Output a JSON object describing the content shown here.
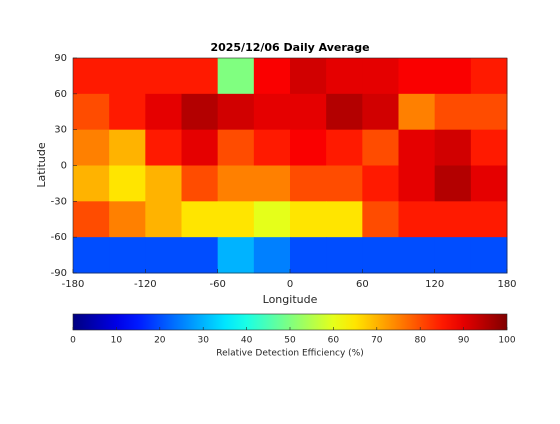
{
  "chart_data": {
    "type": "heatmap",
    "title": "2025/12/06 Daily Average",
    "xlabel": "Longitude",
    "ylabel": "Latitude",
    "xlim": [
      -180,
      180
    ],
    "ylim": [
      -90,
      90
    ],
    "xticks": [
      -180,
      -120,
      -60,
      0,
      60,
      120,
      180
    ],
    "yticks": [
      90,
      60,
      30,
      0,
      -30,
      -60,
      -90
    ],
    "x": [
      -165,
      -135,
      -105,
      -75,
      -45,
      -15,
      15,
      45,
      75,
      105,
      135,
      165
    ],
    "y": [
      75,
      45,
      15,
      -15,
      -45,
      -75
    ],
    "values": [
      [
        85,
        85,
        85,
        85,
        50,
        88,
        92,
        90,
        90,
        88,
        88,
        85
      ],
      [
        80,
        85,
        90,
        95,
        92,
        90,
        90,
        95,
        92,
        75,
        80,
        80
      ],
      [
        75,
        70,
        85,
        90,
        80,
        85,
        88,
        85,
        80,
        90,
        92,
        85
      ],
      [
        70,
        65,
        70,
        80,
        75,
        75,
        80,
        80,
        85,
        90,
        95,
        90
      ],
      [
        80,
        75,
        70,
        65,
        65,
        60,
        65,
        65,
        80,
        85,
        85,
        85
      ],
      [
        20,
        20,
        20,
        20,
        30,
        25,
        20,
        20,
        20,
        20,
        20,
        20
      ]
    ],
    "colormap": "jet",
    "colorbar": {
      "label": "Relative Detection Efficiency (%)",
      "lim": [
        0,
        100
      ],
      "ticks": [
        0,
        10,
        20,
        30,
        40,
        50,
        60,
        70,
        80,
        90,
        100
      ]
    }
  }
}
